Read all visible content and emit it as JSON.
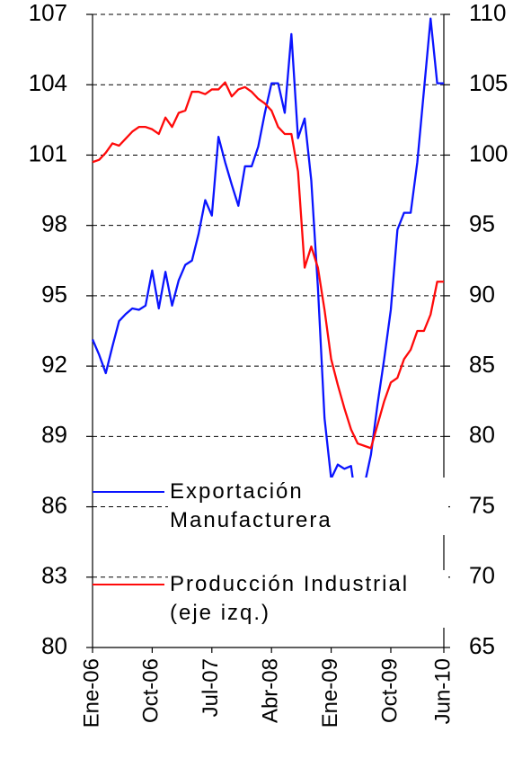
{
  "chart_data": {
    "type": "line",
    "categories": [
      "Ene-06",
      null,
      null,
      null,
      null,
      null,
      null,
      null,
      null,
      "Oct-06",
      null,
      null,
      null,
      null,
      null,
      null,
      null,
      null,
      "Jul-07",
      null,
      null,
      null,
      null,
      null,
      null,
      null,
      null,
      "Abr-08",
      null,
      null,
      null,
      null,
      null,
      null,
      null,
      null,
      "Ene-09",
      null,
      null,
      null,
      null,
      null,
      null,
      null,
      null,
      "Oct-09",
      null,
      null,
      null,
      null,
      null,
      null,
      null,
      "Jun-10"
    ],
    "series": [
      {
        "name": "Exportación Manufacturera",
        "color": "#0a14ff",
        "axis": "y2",
        "values": [
          86.9,
          85.8,
          84.5,
          86.4,
          88.2,
          88.7,
          89.1,
          89.0,
          89.3,
          91.8,
          89.1,
          91.7,
          89.3,
          91.1,
          92.2,
          92.5,
          94.4,
          96.8,
          95.7,
          101.3,
          99.5,
          97.9,
          96.4,
          99.2,
          99.2,
          100.6,
          103.0,
          105.1,
          105.1,
          103.0,
          108.6,
          101.2,
          102.6,
          98.2,
          90.6,
          81.3,
          77.0,
          78.0,
          77.7,
          77.9,
          74.5,
          76.5,
          78.7,
          82.3,
          85.5,
          89.0,
          94.7,
          95.9,
          95.9,
          99.5,
          104.6,
          109.7,
          105.1,
          105.1
        ]
      },
      {
        "name": "Producción Industrial (eje izq.)",
        "color": "#ff0a0a",
        "values": [
          100.7,
          100.8,
          101.1,
          101.5,
          101.4,
          101.7,
          102.0,
          102.2,
          102.2,
          102.1,
          101.9,
          102.6,
          102.2,
          102.8,
          102.9,
          103.7,
          103.7,
          103.6,
          103.8,
          103.8,
          104.1,
          103.5,
          103.8,
          103.9,
          103.7,
          103.4,
          103.2,
          102.9,
          102.2,
          101.9,
          101.9,
          100.3,
          96.2,
          97.1,
          96.2,
          94.4,
          92.3,
          91.2,
          90.2,
          89.3,
          88.7,
          88.6,
          88.5,
          89.5,
          90.5,
          91.3,
          91.5,
          92.3,
          92.7,
          93.5,
          93.5,
          94.2,
          95.6,
          95.6
        ]
      }
    ],
    "ylim": [
      80,
      107
    ],
    "yticks": [
      80,
      83,
      86,
      89,
      92,
      95,
      98,
      101,
      104,
      107
    ],
    "y2lim": [
      65,
      110
    ],
    "y2ticks": [
      65,
      70,
      75,
      80,
      85,
      90,
      95,
      100,
      105,
      110
    ],
    "grid": true
  }
}
